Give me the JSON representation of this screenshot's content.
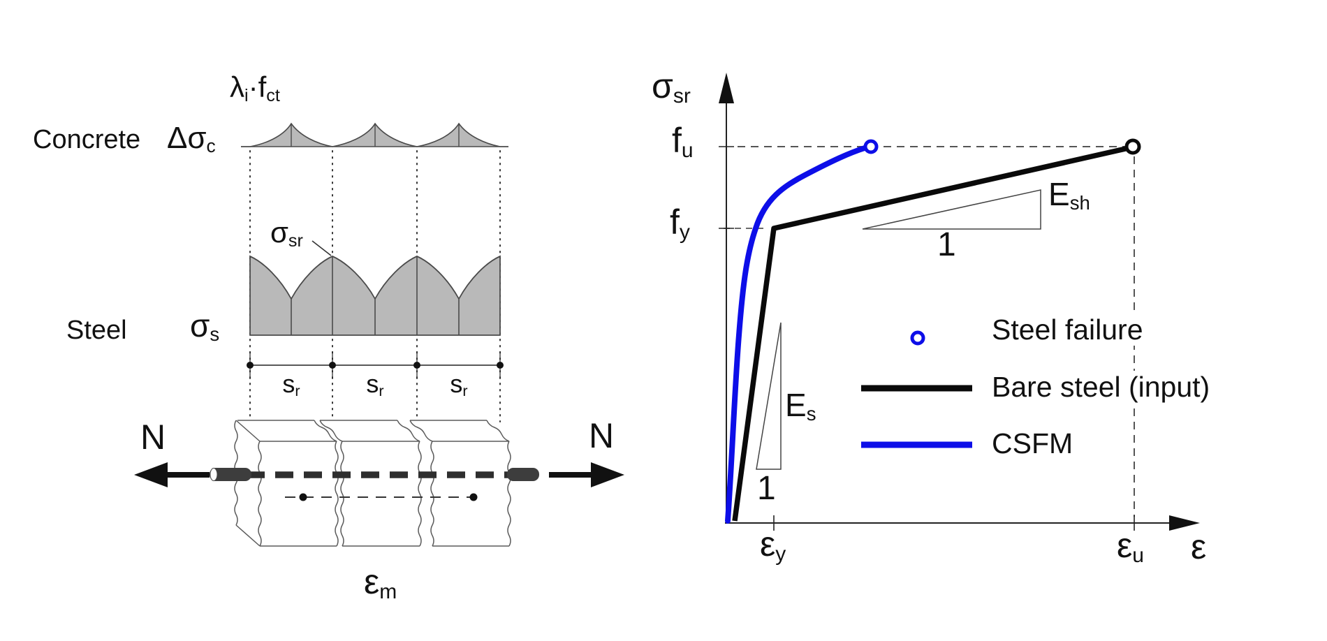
{
  "colors": {
    "accent_blue": "#0d0ee8",
    "curve_black": "#0a0a0a",
    "stress_fill_grey": "#b9b9b9",
    "stress_stroke_grey": "#4a4a4a",
    "dashed_guide_grey": "#555555"
  },
  "left_diagram": {
    "concrete_row_label": "Concrete",
    "steel_row_label": "Steel",
    "labels": {
      "delta_sigma_c": {
        "m1": "Δσ",
        "s1": "c"
      },
      "lambda_fct": {
        "m1": "λ",
        "s1": "i",
        "m2": "·f",
        "s2": "ct"
      },
      "sigma_sr": {
        "m1": "σ",
        "s1": "sr"
      },
      "sigma_s": {
        "m1": "σ",
        "s1": "s"
      },
      "crack_spacing": {
        "m1": "s",
        "s1": "r"
      },
      "force_left": "N",
      "force_right": "N",
      "mean_strain": {
        "m1": "ε",
        "s1": "m"
      }
    },
    "crack_lines": 4,
    "crack_spacing_spans": 3
  },
  "chart": {
    "y_axis_label": {
      "m1": "σ",
      "s1": "sr"
    },
    "x_axis_label": {
      "m1": "ε"
    },
    "y_tick_fu": {
      "m1": "f",
      "s1": "u"
    },
    "y_tick_fy": {
      "m1": "f",
      "s1": "y"
    },
    "x_tick_ey": {
      "m1": "ε",
      "s1": "y"
    },
    "x_tick_eu": {
      "m1": "ε",
      "s1": "u"
    },
    "slope_elastic": {
      "m1": "E",
      "s1": "s"
    },
    "slope_hardening": {
      "m1": "E",
      "s1": "sh"
    },
    "unit_run_elastic": "1",
    "unit_run_hardening": "1",
    "legend": [
      {
        "marker": "open-circle-blue",
        "label": "Steel failure"
      },
      {
        "marker": "thick-black-line",
        "label": "Bare steel (input)"
      },
      {
        "marker": "thick-blue-line",
        "label": "CSFM"
      }
    ],
    "chart_data": {
      "type": "line",
      "title": "",
      "xlabel": "ε",
      "ylabel": "σsr",
      "x_tick_labels": [
        "εy",
        "εu"
      ],
      "y_tick_labels": [
        "fy",
        "fu"
      ],
      "grid": false,
      "legend_position": "center-right",
      "series": [
        {
          "name": "Bare steel (input)",
          "color": "#0a0a0a",
          "points_norm_x_eps_u_y_fu": [
            [
              0,
              0
            ],
            [
              0.117,
              0.783
            ],
            [
              1.0,
              1.0
            ]
          ],
          "breakpoints": [
            "origin",
            "(εy, fy)",
            "(εu, fu)"
          ],
          "end_marker": "open black circle at (εu, fu)"
        },
        {
          "name": "CSFM",
          "color": "#0d0ee8",
          "points_norm_x_eps_u_y_fu": [
            [
              0.0,
              0
            ],
            [
              0.03,
              0.46
            ],
            [
              0.072,
              0.783
            ],
            [
              0.19,
              0.92
            ],
            [
              0.353,
              1.0
            ]
          ],
          "end_marker": "open blue circle (steel failure) at (≈0.35·εu, fu)"
        }
      ],
      "annotations": [
        "elastic slope triangle Es over run 1",
        "hardening slope triangle Esh over run 1",
        "dashed guides at fu, fy and εu"
      ]
    }
  }
}
